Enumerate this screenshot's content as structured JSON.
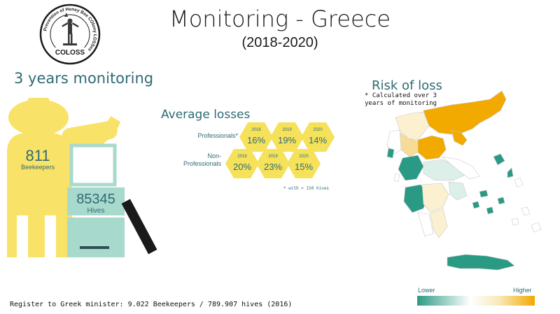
{
  "header": {
    "title": "Monitoring - Greece",
    "subtitle": "(2018-2020)"
  },
  "logo": {
    "ring_text": "Prevention of Honey Bee COlony LOSSes",
    "name": "COLOSS"
  },
  "left_panel": {
    "heading": "3 years monitoring",
    "beekeepers_value": "811",
    "beekeepers_label": "Beekeepers",
    "hives_value": "85345",
    "hives_label": "Hives"
  },
  "average_losses": {
    "heading": "Average losses",
    "rows": [
      {
        "label": "Professionals*",
        "cells": [
          {
            "year": "2018",
            "value": "16%"
          },
          {
            "year": "2019",
            "value": "19%"
          },
          {
            "year": "2020",
            "value": "14%"
          }
        ]
      },
      {
        "label": "Non-Professionals",
        "label_line1": "Non-",
        "label_line2": "Professionals",
        "cells": [
          {
            "year": "2018",
            "value": "20%"
          },
          {
            "year": "2019",
            "value": "23%"
          },
          {
            "year": "2020",
            "value": "15%"
          }
        ]
      }
    ],
    "footnote": "* with > 150 hives"
  },
  "risk_map": {
    "heading": "Risk of loss",
    "note_line1": "* Calculated over 3",
    "note_line2": "years of monitoring",
    "legend_lower": "Lower",
    "legend_higher": "Higher",
    "colors": {
      "high": "#f2a900",
      "mid_high": "#f7dc98",
      "light": "#fbf0cf",
      "pale": "#ffffff",
      "mint": "#dcefe8",
      "low": "#2a9a84"
    }
  },
  "bottom_note": "Register to Greek minister: 9.022 Beekeepers / 789.907 hives (2016)",
  "colors": {
    "teal_text": "#2f6b73",
    "beekeeper_yellow": "#f9e268",
    "hive_teal": "#a8d9cd",
    "hex_yellow": "#f6e15a"
  }
}
